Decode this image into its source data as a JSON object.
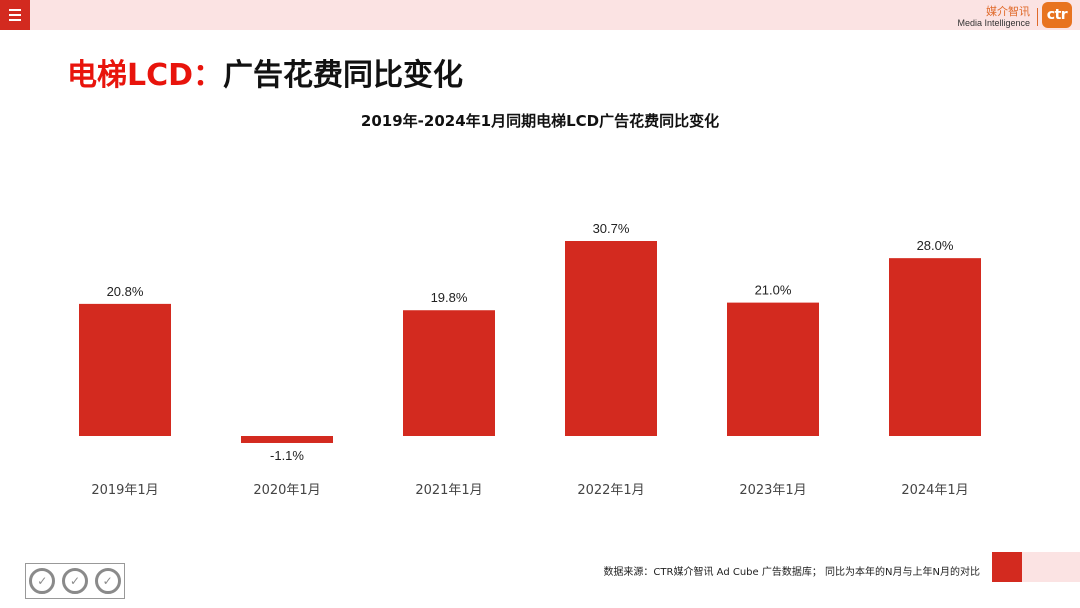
{
  "header": {
    "brand_cn": "媒介智讯",
    "brand_en": "Media Intelligence",
    "logo_text": "ctr"
  },
  "title": {
    "prefix": "电梯LCD：",
    "suffix": "广告花费同比变化"
  },
  "footer": {
    "source": "数据来源：CTR媒介智讯 Ad Cube 广告数据库；  同比为本年的N月与上年N月的对比"
  },
  "colors": {
    "bar": "#d32a1f",
    "title_red": "#e8140c",
    "accent_pink": "#fbe3e3"
  },
  "icons": {
    "menu": "hamburger-icon",
    "certification": "sgs-certification-icon"
  },
  "chart_data": {
    "type": "bar",
    "title": "2019年-2024年1月同期电梯LCD广告花费同比变化",
    "categories": [
      "2019年1月",
      "2020年1月",
      "2021年1月",
      "2022年1月",
      "2023年1月",
      "2024年1月"
    ],
    "values": [
      20.8,
      -1.1,
      19.8,
      30.7,
      21.0,
      28.0
    ],
    "labels": [
      "20.8%",
      "-1.1%",
      "19.8%",
      "30.7%",
      "21.0%",
      "28.0%"
    ],
    "unit": "%",
    "xlabel": "",
    "ylabel": "",
    "grid": false,
    "legend": "none",
    "ylim": [
      -1.1,
      30.7
    ]
  }
}
